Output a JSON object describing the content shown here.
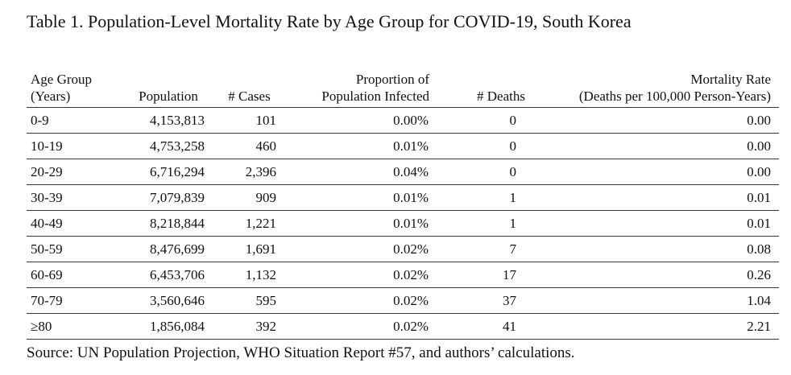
{
  "title": "Table 1. Population-Level Mortality Rate by Age Group for COVID-19, South Korea",
  "headers": {
    "age_group": [
      "Age Group",
      "(Years)"
    ],
    "population": [
      "Population"
    ],
    "cases": [
      "# Cases"
    ],
    "proportion": [
      "Proportion of",
      "Population Infected"
    ],
    "deaths": [
      "# Deaths"
    ],
    "mortality": [
      "Mortality Rate",
      "(Deaths per 100,000 Person-Years)"
    ]
  },
  "rows": [
    {
      "age": "0-9",
      "population": "4,153,813",
      "cases": "101",
      "proportion": "0.00%",
      "deaths": "0",
      "mortality": "0.00"
    },
    {
      "age": "10-19",
      "population": "4,753,258",
      "cases": "460",
      "proportion": "0.01%",
      "deaths": "0",
      "mortality": "0.00"
    },
    {
      "age": "20-29",
      "population": "6,716,294",
      "cases": "2,396",
      "proportion": "0.04%",
      "deaths": "0",
      "mortality": "0.00"
    },
    {
      "age": "30-39",
      "population": "7,079,839",
      "cases": "909",
      "proportion": "0.01%",
      "deaths": "1",
      "mortality": "0.01"
    },
    {
      "age": "40-49",
      "population": "8,218,844",
      "cases": "1,221",
      "proportion": "0.01%",
      "deaths": "1",
      "mortality": "0.01"
    },
    {
      "age": "50-59",
      "population": "8,476,699",
      "cases": "1,691",
      "proportion": "0.02%",
      "deaths": "7",
      "mortality": "0.08"
    },
    {
      "age": "60-69",
      "population": "6,453,706",
      "cases": "1,132",
      "proportion": "0.02%",
      "deaths": "17",
      "mortality": "0.26"
    },
    {
      "age": "70-79",
      "population": "3,560,646",
      "cases": "595",
      "proportion": "0.02%",
      "deaths": "37",
      "mortality": "1.04"
    },
    {
      "age": "≥80",
      "population": "1,856,084",
      "cases": "392",
      "proportion": "0.02%",
      "deaths": "41",
      "mortality": "2.21"
    }
  ],
  "source": "Source: UN Population Projection, WHO Situation Report #57, and authors’ calculations."
}
